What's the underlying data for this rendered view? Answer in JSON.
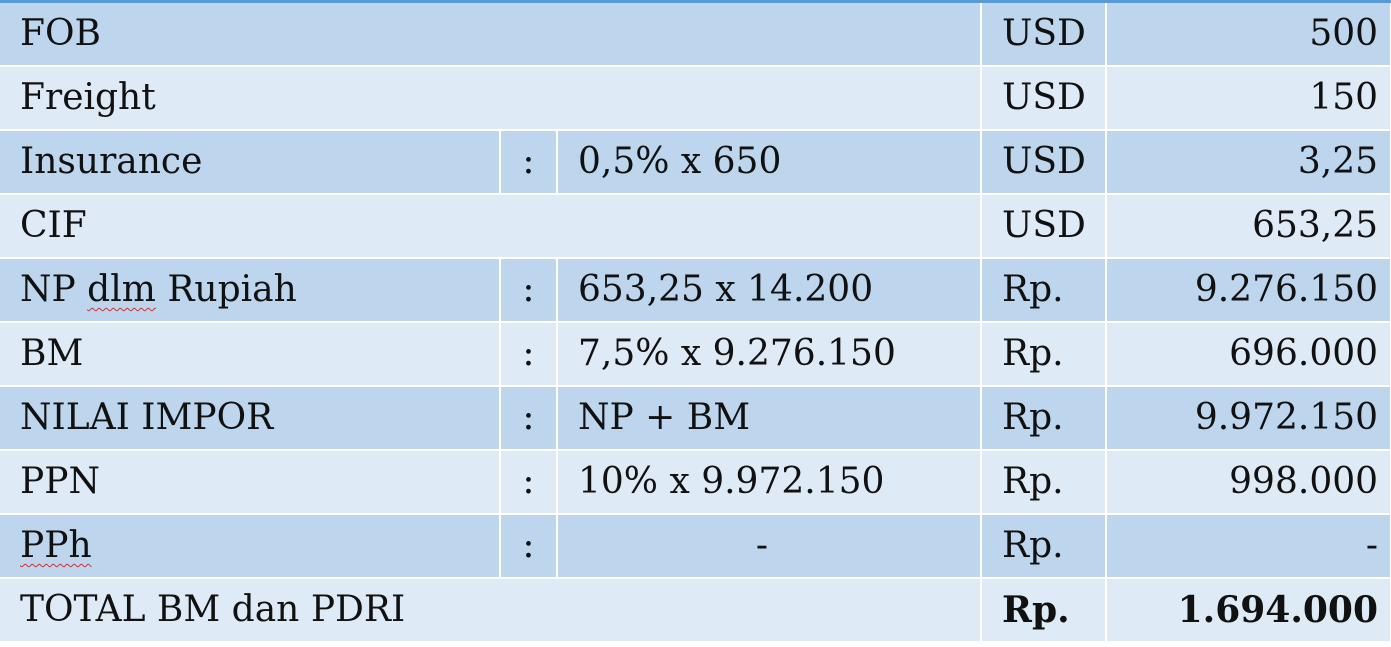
{
  "rows": [
    {
      "label": "FOB",
      "colon": "",
      "formula": "",
      "currency": "USD",
      "amount": "500"
    },
    {
      "label": "Freight",
      "colon": "",
      "formula": "",
      "currency": "USD",
      "amount": "150"
    },
    {
      "label": "Insurance",
      "colon": ":",
      "formula": "0,5% x 650",
      "currency": "USD",
      "amount": "3,25"
    },
    {
      "label": "CIF",
      "colon": "",
      "formula": "",
      "currency": "USD",
      "amount": "653,25"
    },
    {
      "label_a": "NP ",
      "label_b": "dlm",
      "label_c": " Rupiah",
      "colon": ":",
      "formula": "653,25 x 14.200",
      "currency": "Rp.",
      "amount": "9.276.150"
    },
    {
      "label": "BM",
      "colon": ":",
      "formula": "7,5% x 9.276.150",
      "currency": "Rp.",
      "amount": "696.000"
    },
    {
      "label": "NILAI IMPOR",
      "colon": ":",
      "formula": "NP + BM",
      "currency": "Rp.",
      "amount": "9.972.150"
    },
    {
      "label": "PPN",
      "colon": ":",
      "formula": "10% x 9.972.150",
      "currency": "Rp.",
      "amount": "998.000"
    },
    {
      "label": "PPh",
      "colon": ":",
      "formula": "-",
      "currency": "Rp.",
      "amount": "-"
    },
    {
      "label": "TOTAL BM dan PDRI",
      "colon": "",
      "formula": "",
      "currency": "Rp.",
      "amount": "1.694.000"
    }
  ]
}
